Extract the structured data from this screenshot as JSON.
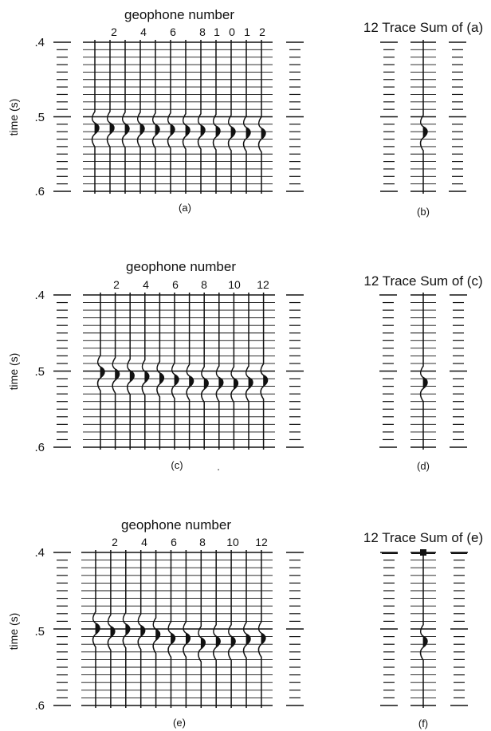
{
  "figure": {
    "panels": [
      {
        "gather_title": "geophone number",
        "geophone_labels": [
          "2",
          "4",
          "6",
          "8",
          "1",
          "0",
          "1",
          "2"
        ],
        "gather_caption": "(a)",
        "sum_title": "12 Trace Sum of (a)",
        "sum_caption": "(b)",
        "ylabel": "time (s)",
        "yticks": [
          ".4",
          ".5",
          ".6"
        ],
        "trace_count": 12,
        "pick_times": [
          0.516,
          0.516,
          0.517,
          0.517,
          0.518,
          0.518,
          0.519,
          0.519,
          0.52,
          0.521,
          0.522,
          0.523
        ],
        "sum_pick_time": 0.521
      },
      {
        "gather_title": "geophone number",
        "geophone_labels": [
          "2",
          "4",
          "6",
          "8",
          "10",
          "12"
        ],
        "gather_caption": "(c)",
        "caption_extra": ".",
        "sum_title": "12 Trace Sum of (c)",
        "sum_caption": "(d)",
        "ylabel": "time (s)",
        "yticks": [
          ".4",
          ".5",
          ".6"
        ],
        "trace_count": 12,
        "pick_times": [
          0.502,
          0.505,
          0.507,
          0.508,
          0.51,
          0.512,
          0.514,
          0.517,
          0.516,
          0.517,
          0.516,
          0.513
        ],
        "sum_pick_time": 0.516
      },
      {
        "gather_title": "geophone number",
        "geophone_labels": [
          "2",
          "4",
          "6",
          "8",
          "10",
          "12"
        ],
        "gather_caption": "(e)",
        "sum_title": "12 Trace Sum of (e)",
        "sum_caption": "(f)",
        "ylabel": "time (s)",
        "yticks": [
          ".4",
          ".5",
          ".6"
        ],
        "trace_count": 12,
        "pick_times": [
          0.5,
          0.504,
          0.501,
          0.503,
          0.508,
          0.513,
          0.513,
          0.519,
          0.517,
          0.517,
          0.514,
          0.513
        ],
        "sum_pick_time": 0.517
      }
    ]
  }
}
